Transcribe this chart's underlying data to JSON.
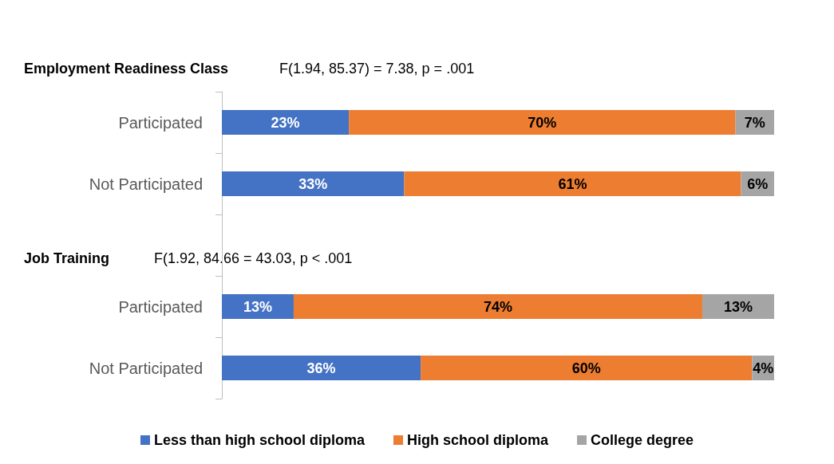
{
  "chart_data": {
    "type": "bar",
    "orientation": "horizontal",
    "stacked": true,
    "legend": "bottom",
    "categories": [
      "Participated",
      "Not Participated",
      null,
      "Participated",
      "Not Participated"
    ],
    "annotations": [
      "Employment Readiness Class",
      "F(1.94, 85.37) = 7.38, p = .001",
      "Job Training",
      "F(1.92, 84.66 = 43.03, p < .001"
    ],
    "series": [
      {
        "name": "Less than high school diploma",
        "color": "#4472c4",
        "values": [
          23,
          33,
          null,
          13,
          36
        ],
        "value_labels": [
          "23%",
          "33%",
          null,
          "13%",
          "36%"
        ]
      },
      {
        "name": "High school diploma",
        "color": "#ed7d31",
        "values": [
          70,
          61,
          null,
          74,
          60
        ],
        "value_labels": [
          "70%",
          "61%",
          null,
          "74%",
          "60%"
        ]
      },
      {
        "name": "College degree",
        "color": "#a5a5a5",
        "values": [
          7,
          6,
          null,
          13,
          4
        ],
        "value_labels": [
          "7%",
          "6%",
          null,
          "13%",
          "4%"
        ]
      }
    ]
  }
}
